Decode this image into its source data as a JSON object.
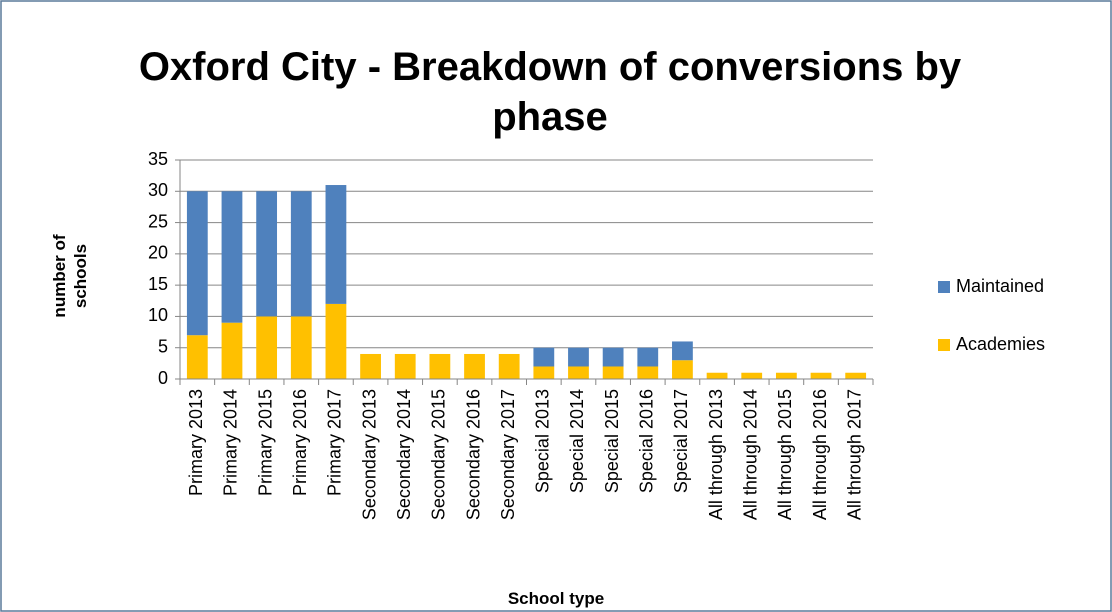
{
  "chart_data": {
    "type": "stacked_bar",
    "title": "Oxford City - Breakdown of conversions by phase",
    "x_label": "School type",
    "y_label": "number of schools",
    "categories": [
      "Primary 2013",
      "Primary 2014",
      "Primary 2015",
      "Primary 2016",
      "Primary 2017",
      "Secondary 2013",
      "Secondary 2014",
      "Secondary 2015",
      "Secondary 2016",
      "Secondary 2017",
      "Special 2013",
      "Special 2014",
      "Special 2015",
      "Special 2016",
      "Special 2017",
      "All through 2013",
      "All through 2014",
      "All through 2015",
      "All through 2016",
      "All through 2017"
    ],
    "series": [
      {
        "name": "Academies",
        "color": "#FFC000",
        "values": [
          7,
          9,
          10,
          10,
          12,
          4,
          4,
          4,
          4,
          4,
          2,
          2,
          2,
          2,
          3,
          1,
          1,
          1,
          1,
          1
        ]
      },
      {
        "name": "Maintained",
        "color": "#4F81BD",
        "values": [
          23,
          21,
          20,
          20,
          19,
          0,
          0,
          0,
          0,
          0,
          3,
          3,
          3,
          3,
          3,
          0,
          0,
          0,
          0,
          0
        ]
      }
    ],
    "ylim": [
      0,
      35
    ],
    "yticks": [
      0,
      5,
      10,
      15,
      20,
      25,
      30,
      35
    ],
    "grid": true,
    "legend": "right"
  }
}
